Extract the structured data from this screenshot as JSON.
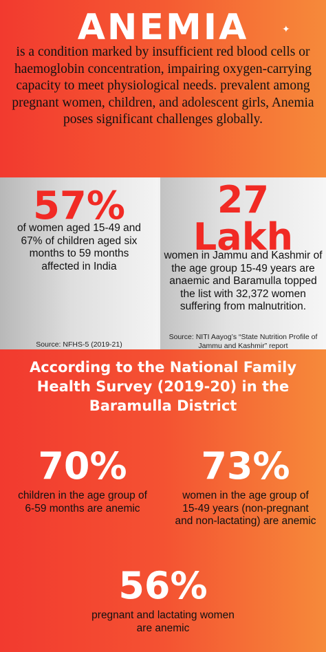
{
  "header": {
    "title": "ANEMIA",
    "intro": "is a condition marked by insufficient red blood cells or haemoglobin concentration, impairing oxygen-carrying capacity to meet physiological needs. prevalent among pregnant women, children, and adolescent girls, Anemia poses significant challenges globally."
  },
  "left_panel": {
    "stat": "57%",
    "text": "of women aged 15-49 and 67% of children aged six months to 59 months affected in India",
    "source": "Source: NFHS-5 (2019-21)"
  },
  "right_panel": {
    "stat_line1": "27",
    "stat_line2": "Lakh",
    "text": "women in Jammu and Kashmir of the age group 15-49 years are anaemic and Baramulla topped the list with 32,372 women suffering from malnutrition.",
    "source": "Source: NITI Aayog’s “State Nutrition Profile of Jammu and Kashmir” report"
  },
  "survey": {
    "heading": "According to the National Family Health Survey (2019-20) in the Baramulla District",
    "stats": [
      {
        "value": "70%",
        "text": "children in the age group of 6-59 months are anemic"
      },
      {
        "value": "73%",
        "text": "women in the age group of 15-49 years (non-pregnant and non-lactating) are anemic"
      },
      {
        "value": "56%",
        "text": "pregnant and lactating women are anemic"
      }
    ]
  },
  "colors": {
    "accent_red": "#f12a24",
    "orange": "#f68a3a",
    "panel_grey": "#dedede"
  },
  "icons": {
    "sparkle": "sparkle-icon"
  }
}
